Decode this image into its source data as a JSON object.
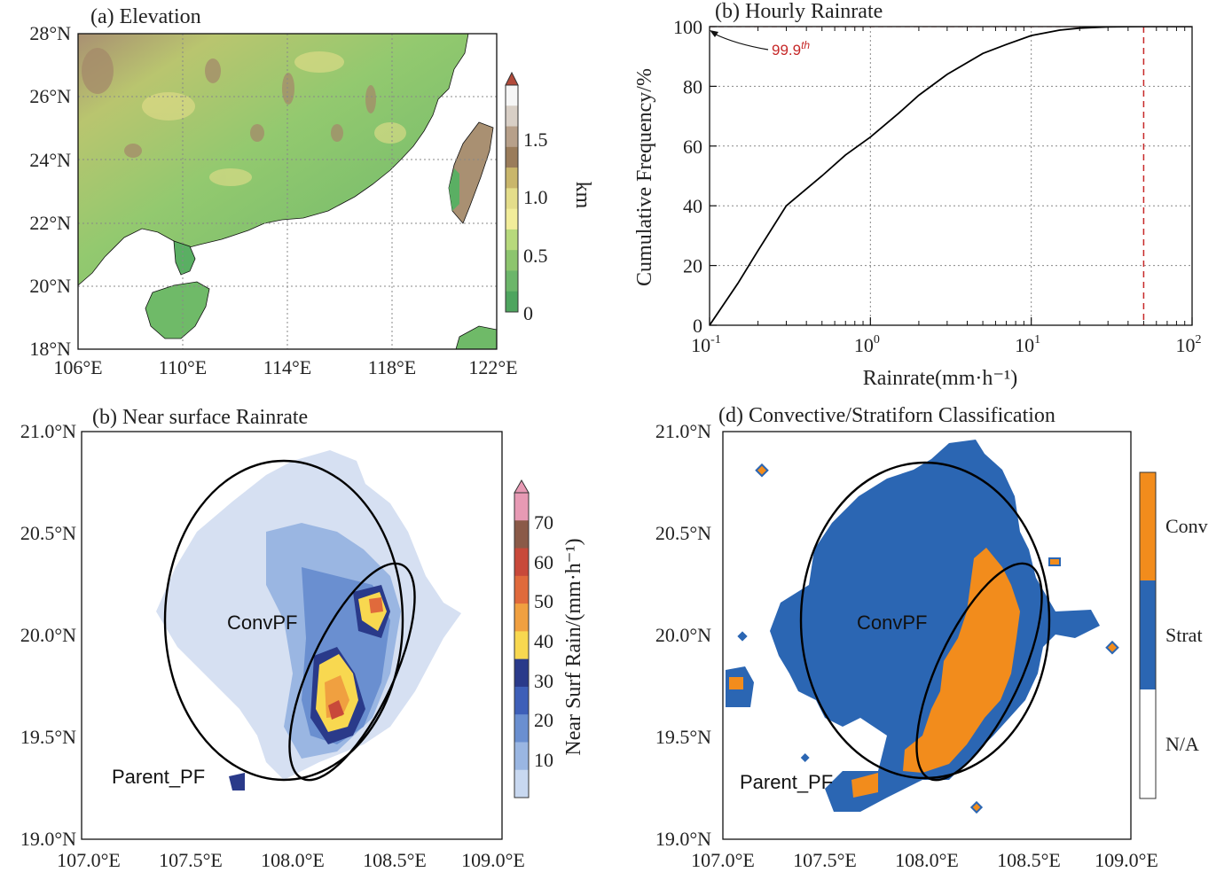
{
  "panels": {
    "a": {
      "title": "(a) Elevation",
      "lat_ticks": [
        "28°N",
        "26°N",
        "24°N",
        "22°N",
        "20°N",
        "18°N"
      ],
      "lon_ticks": [
        "106°E",
        "110°E",
        "114°E",
        "118°E",
        "122°E"
      ],
      "colorbar": {
        "label": "km",
        "ticks": [
          "1.5",
          "1.0",
          "0.5",
          "0"
        ],
        "colors": [
          "#f6f6f6",
          "#d8cfc6",
          "#b7a08a",
          "#9a7c5b",
          "#c9b66b",
          "#e4dd8a",
          "#f2ed9a",
          "#b7d97c",
          "#8dc56e",
          "#6cb66a",
          "#4ea55f"
        ]
      }
    },
    "b": {
      "title": "(b) Hourly Rainrate",
      "xlabel": "Rainrate(mm·h⁻¹)",
      "ylabel": "Cumulative Frequency/%",
      "y_ticks": [
        "100",
        "80",
        "60",
        "40",
        "20",
        "0"
      ],
      "x_tick_bases": [
        "10",
        "10",
        "10",
        "10"
      ],
      "x_tick_exps": [
        "-1",
        "0",
        "1",
        "2"
      ],
      "annotation_value": "99.9",
      "annotation_sup": "th"
    },
    "c": {
      "title": "(b) Near surface Rainrate",
      "lat_ticks": [
        "21.0°N",
        "20.5°N",
        "20.0°N",
        "19.5°N",
        "19.0°N"
      ],
      "lon_ticks": [
        "107.0°E",
        "107.5°E",
        "108.0°E",
        "108.5°E",
        "109.0°E"
      ],
      "label_conv": "ConvPF",
      "label_parent": "Parent_PF",
      "colorbar": {
        "label": "Near Surf Rain/(mm·h⁻¹)",
        "ticks": [
          "70",
          "60",
          "50",
          "40",
          "30",
          "20",
          "10"
        ],
        "colors": [
          "#e79ab4",
          "#8a5a48",
          "#c8493a",
          "#e06a3c",
          "#f0a040",
          "#f8d850",
          "#2a3a8a",
          "#3e5fb8",
          "#6a8fd0",
          "#9ab6e2",
          "#c8d8f0"
        ]
      }
    },
    "d": {
      "title": "(d) Convective/Stratiforn Classification",
      "lat_ticks": [
        "21.0°N",
        "20.5°N",
        "20.0°N",
        "19.5°N",
        "19.0°N"
      ],
      "lon_ticks": [
        "107.0°E",
        "107.5°E",
        "108.0°E",
        "108.5°E",
        "109.0°E"
      ],
      "label_conv": "ConvPF",
      "label_parent": "Parent_PF",
      "legend": [
        {
          "label": "Conv",
          "color": "#f28c1c"
        },
        {
          "label": "Strat",
          "color": "#2b66b3"
        },
        {
          "label": "N/A",
          "color": "#ffffff"
        }
      ]
    }
  },
  "chart_data": [
    {
      "type": "heatmap",
      "title": "(a) Elevation",
      "xlabel": "",
      "ylabel": "",
      "xlim": [
        106,
        122
      ],
      "ylim": [
        18,
        28
      ],
      "colorbar_label": "km",
      "colorbar_range": [
        0,
        1.9
      ]
    },
    {
      "type": "line",
      "title": "(b) Hourly Rainrate",
      "xlabel": "Rainrate(mm·h⁻¹)",
      "ylabel": "Cumulative Frequency/%",
      "xscale": "log",
      "xlim": [
        0.1,
        100
      ],
      "ylim": [
        0,
        100
      ],
      "grid": true,
      "series": [
        {
          "x": [
            0.1,
            0.15,
            0.2,
            0.3,
            0.5,
            0.7,
            1,
            1.5,
            2,
            3,
            5,
            7,
            10,
            15,
            20,
            30,
            50,
            100
          ],
          "values": [
            0,
            14,
            25,
            40,
            50,
            57,
            63,
            71,
            77,
            84,
            91,
            94,
            97,
            98.8,
            99.5,
            99.9,
            100,
            100
          ]
        }
      ],
      "reference_lines": {
        "y": 100,
        "x": 50
      },
      "annotation": {
        "text": "99.9th",
        "x": 0.1,
        "y": 100
      }
    },
    {
      "type": "heatmap",
      "title": "(b) Near surface Rainrate",
      "xlim": [
        107.0,
        109.0
      ],
      "ylim": [
        19.0,
        21.0
      ],
      "colorbar_label": "Near Surf Rain/(mm·h⁻¹)",
      "colorbar_ticks": [
        10,
        20,
        30,
        40,
        50,
        60,
        70
      ],
      "annotations": [
        {
          "text": "ConvPF",
          "x": 107.92,
          "y": 20.07
        },
        {
          "text": "Parent_PF",
          "x": 107.4,
          "y": 19.25
        }
      ],
      "ellipses": [
        {
          "center": [
            108.04,
            20.07
          ],
          "semi_axes_deg": [
            0.55,
            0.79
          ],
          "angle": 0
        },
        {
          "center": [
            108.22,
            19.85
          ],
          "semi_axes_deg": [
            0.18,
            0.58
          ],
          "angle": 25
        }
      ]
    },
    {
      "type": "heatmap",
      "title": "(d) Convective/Stratiforn Classification",
      "xlim": [
        107.0,
        109.0
      ],
      "ylim": [
        19.0,
        21.0
      ],
      "categories": [
        "Conv",
        "Strat",
        "N/A"
      ],
      "annotations": [
        {
          "text": "ConvPF",
          "x": 107.92,
          "y": 20.07
        },
        {
          "text": "Parent_PF",
          "x": 107.4,
          "y": 19.25
        }
      ]
    }
  ]
}
